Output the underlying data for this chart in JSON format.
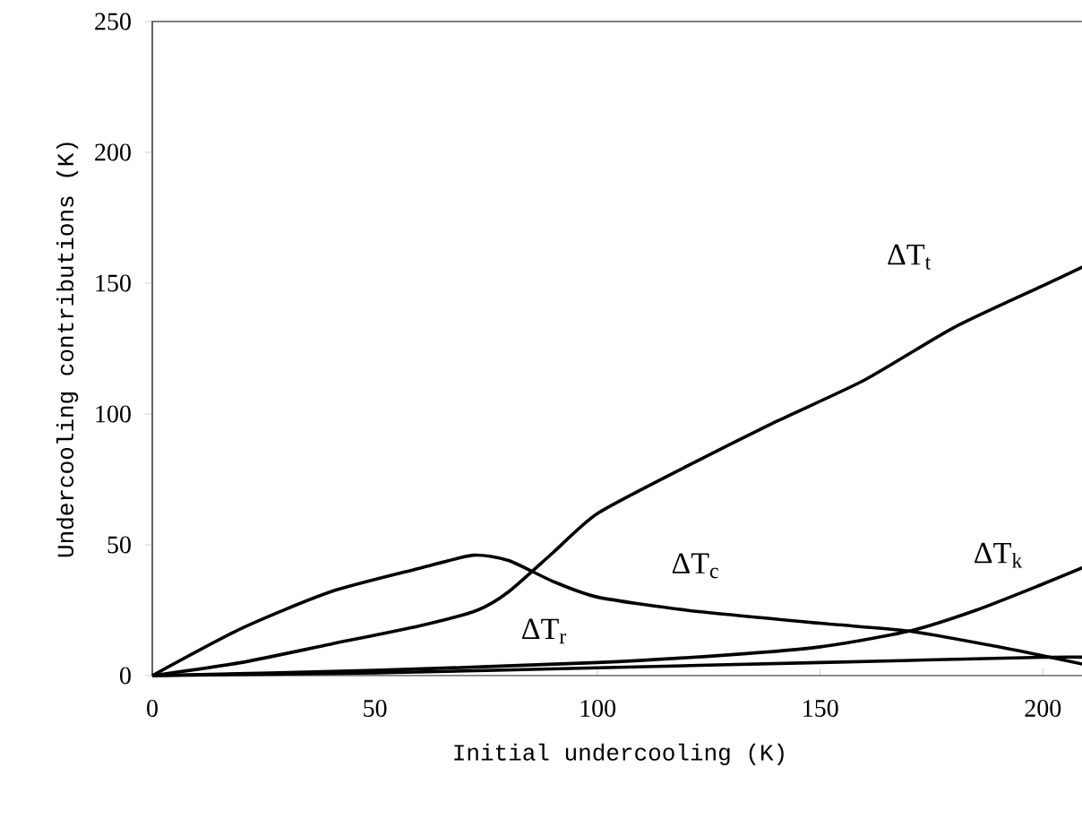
{
  "chart_data": {
    "type": "line",
    "xlabel": "Initial undercooling (K)",
    "ylabel": "Undercooling contributions (K)",
    "xlim": [
      0,
      210
    ],
    "ylim": [
      0,
      250
    ],
    "xticks": [
      0,
      50,
      100,
      150,
      200
    ],
    "yticks": [
      0,
      50,
      100,
      150,
      200,
      250
    ],
    "grid": false,
    "legend": false,
    "marker": "none",
    "line_style": "solid",
    "series": [
      {
        "name": "ΔT$_{t}$",
        "color": "#000000",
        "x": [
          0,
          20,
          40,
          60,
          73,
          80,
          90,
          100,
          120,
          140,
          160,
          180,
          200,
          210
        ],
        "values": [
          0,
          5,
          12,
          19,
          25,
          32,
          47,
          62,
          80,
          97,
          113,
          133,
          149,
          157
        ]
      },
      {
        "name": "ΔT$_{c}$",
        "color": "#000000",
        "x": [
          0,
          20,
          40,
          60,
          72,
          80,
          90,
          100,
          120,
          150,
          170,
          190,
          210
        ],
        "values": [
          0,
          18,
          32,
          41,
          46,
          44,
          36,
          30,
          25,
          20,
          17,
          11,
          4
        ]
      },
      {
        "name": "ΔT$_{k}$",
        "color": "#000000",
        "x": [
          0,
          50,
          100,
          130,
          150,
          170,
          185,
          200,
          210
        ],
        "values": [
          0,
          2,
          5,
          8,
          11,
          17,
          25,
          35,
          42
        ]
      },
      {
        "name": "ΔT$_{r}$",
        "color": "#000000",
        "x": [
          0,
          50,
          100,
          150,
          200,
          210
        ],
        "values": [
          0,
          1,
          3,
          5,
          7,
          7
        ]
      }
    ]
  }
}
